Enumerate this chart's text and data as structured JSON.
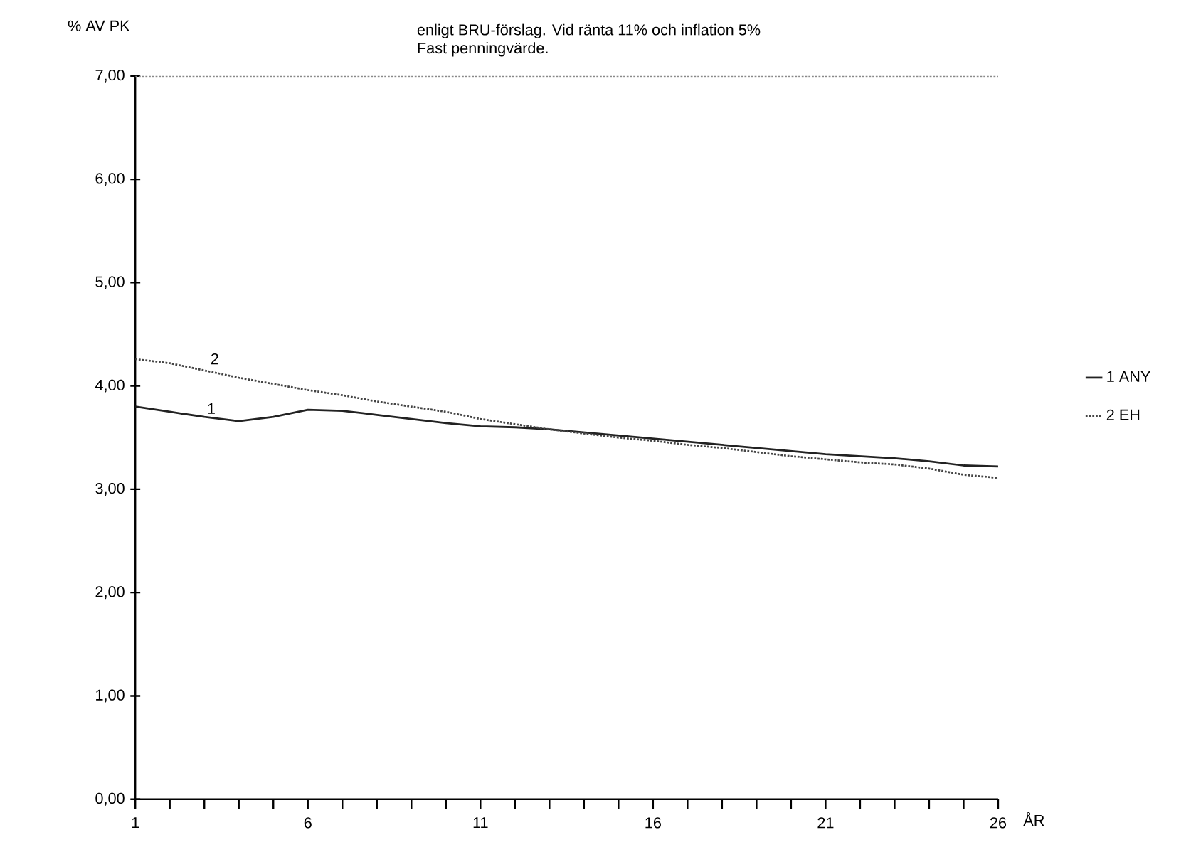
{
  "chart_data": {
    "type": "line",
    "title": "enligt BRU-förslag. Vid ränta 11% och inflation 5%",
    "subtitle": "Fast penningvärde.",
    "ylabel": "% AV PK",
    "xlabel": "ÅR",
    "x": [
      1,
      2,
      3,
      4,
      5,
      6,
      7,
      8,
      9,
      10,
      11,
      12,
      13,
      14,
      15,
      16,
      17,
      18,
      19,
      20,
      21,
      22,
      23,
      24,
      25,
      26
    ],
    "series": [
      {
        "name": "1 ANY",
        "color": "#222222",
        "line_style": "solid",
        "values": [
          3.8,
          3.75,
          3.7,
          3.66,
          3.7,
          3.77,
          3.76,
          3.72,
          3.68,
          3.64,
          3.61,
          3.6,
          3.58,
          3.55,
          3.52,
          3.49,
          3.46,
          3.43,
          3.4,
          3.37,
          3.34,
          3.32,
          3.3,
          3.27,
          3.23,
          3.22
        ]
      },
      {
        "name": "2 EH",
        "color": "#444444",
        "line_style": "dotted",
        "values": [
          4.26,
          4.22,
          4.15,
          4.08,
          4.02,
          3.96,
          3.91,
          3.85,
          3.8,
          3.75,
          3.68,
          3.63,
          3.58,
          3.54,
          3.5,
          3.47,
          3.43,
          3.4,
          3.36,
          3.32,
          3.29,
          3.26,
          3.24,
          3.2,
          3.14,
          3.11
        ]
      },
      {
        "color": "#888888",
        "line_style": "dotted",
        "values": [
          7.0,
          7.0,
          7.0,
          7.0,
          7.0,
          7.0,
          7.0,
          7.0,
          7.0,
          7.0,
          7.0,
          7.0,
          7.0,
          7.0,
          7.0,
          7.0,
          7.0,
          7.0,
          7.0,
          7.0,
          7.0,
          7.0,
          7.0,
          7.0,
          7.0,
          7.0
        ]
      }
    ],
    "annotations": [
      {
        "text": "1",
        "x": 3.2,
        "y": 3.7
      },
      {
        "text": "2",
        "x": 3.3,
        "y": 4.18
      }
    ],
    "xlim": [
      1,
      26
    ],
    "xticks": [
      1,
      {
        "value": 2,
        "label": null
      },
      {
        "value": 3,
        "label": null
      },
      {
        "value": 4,
        "label": null
      },
      {
        "value": 5,
        "label": null
      },
      6,
      {
        "value": 7,
        "label": null
      },
      {
        "value": 8,
        "label": null
      },
      {
        "value": 9,
        "label": null
      },
      {
        "value": 10,
        "label": null
      },
      11,
      {
        "value": 12,
        "label": null
      },
      {
        "value": 13,
        "label": null
      },
      {
        "value": 14,
        "label": null
      },
      {
        "value": 15,
        "label": null
      },
      16,
      {
        "value": 17,
        "label": null
      },
      {
        "value": 18,
        "label": null
      },
      {
        "value": 19,
        "label": null
      },
      {
        "value": 20,
        "label": null
      },
      21,
      {
        "value": 22,
        "label": null
      },
      {
        "value": 23,
        "label": null
      },
      {
        "value": 24,
        "label": null
      },
      {
        "value": 25,
        "label": null
      },
      26
    ],
    "ylim": [
      0,
      7
    ],
    "yticks": [
      {
        "value": 0,
        "label": "0,00"
      },
      {
        "value": 1,
        "label": "1,00"
      },
      {
        "value": 2,
        "label": "2,00"
      },
      {
        "value": 3,
        "label": "3,00"
      },
      {
        "value": 4,
        "label": "4,00"
      },
      {
        "value": 5,
        "label": "5,00"
      },
      {
        "value": 6,
        "label": "6,00"
      },
      {
        "value": 7,
        "label": "7,00"
      }
    ],
    "grid": false,
    "legend": "right",
    "marker": "none"
  }
}
